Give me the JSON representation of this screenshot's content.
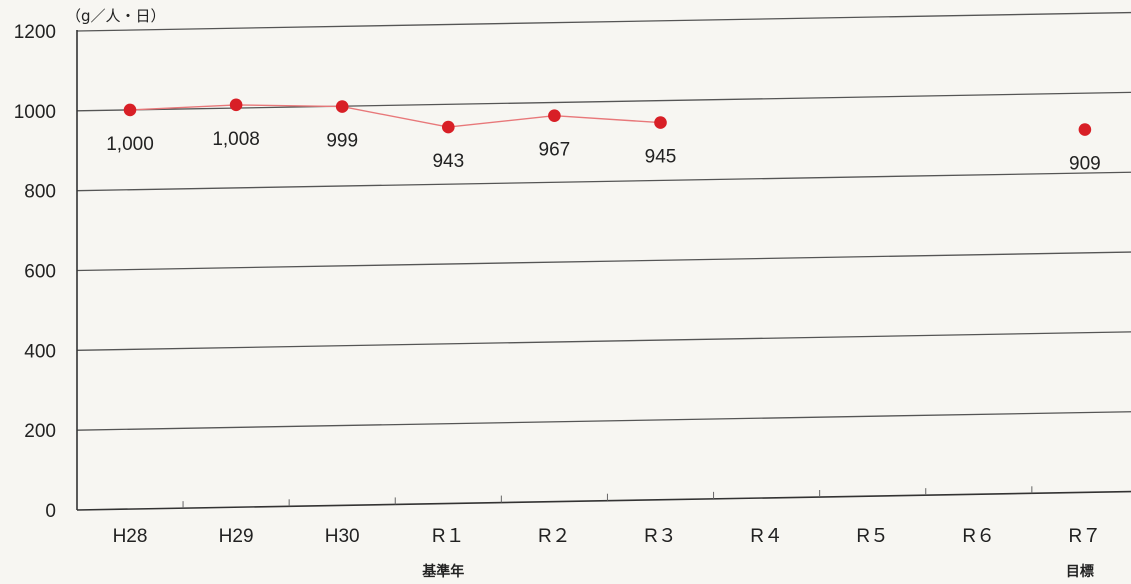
{
  "chart_data": {
    "type": "line",
    "unit": "（g／人・日）",
    "categories": [
      "H28",
      "H29",
      "H30",
      "R１",
      "R２",
      "R３",
      "R４",
      "R５",
      "R６",
      "R７"
    ],
    "sub_labels": [
      {
        "category_index": 3,
        "text": "基準年"
      },
      {
        "category_index": 9,
        "text": "目標"
      }
    ],
    "series": [
      {
        "values": [
          1000,
          1008,
          999,
          943,
          967,
          945,
          null,
          null,
          null,
          null
        ],
        "labels": [
          "1,000",
          "1,008",
          "999",
          "943",
          "967",
          "945",
          "",
          "",
          "",
          ""
        ]
      },
      {
        "values": [
          null,
          null,
          null,
          null,
          null,
          null,
          null,
          null,
          null,
          909
        ],
        "labels": [
          "",
          "",
          "",
          "",
          "",
          "",
          "",
          "",
          "",
          "909"
        ]
      }
    ],
    "ylim": [
      0,
      1200
    ],
    "yticks": [
      {
        "value": 0,
        "label": "0"
      },
      {
        "value": 200,
        "label": "200"
      },
      {
        "value": 400,
        "label": "400"
      },
      {
        "value": 600,
        "label": "600"
      },
      {
        "value": 800,
        "label": "800"
      },
      {
        "value": 1000,
        "label": "1000"
      },
      {
        "value": 1200,
        "label": "1200"
      }
    ],
    "grid": true,
    "colors": {
      "line": "#e8787a",
      "marker": "#d81f26",
      "grid": "#555555"
    }
  }
}
